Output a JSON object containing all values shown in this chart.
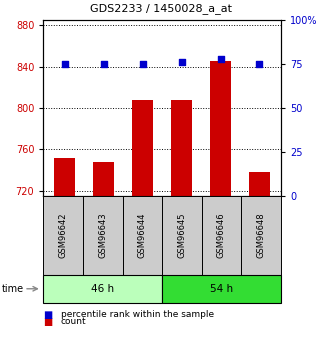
{
  "title": "GDS2233 / 1450028_a_at",
  "samples": [
    "GSM96642",
    "GSM96643",
    "GSM96644",
    "GSM96645",
    "GSM96646",
    "GSM96648"
  ],
  "count_values": [
    752,
    748,
    808,
    808,
    845,
    738
  ],
  "percentile_values": [
    75,
    75,
    75,
    76,
    78,
    75
  ],
  "ylim_left": [
    715,
    885
  ],
  "ylim_right": [
    0,
    100
  ],
  "yticks_left": [
    720,
    760,
    800,
    840,
    880
  ],
  "yticks_right": [
    0,
    25,
    50,
    75,
    100
  ],
  "ytick_labels_right": [
    "0",
    "25",
    "50",
    "75",
    "100%"
  ],
  "bar_color": "#cc0000",
  "dot_color": "#0000cc",
  "bar_width": 0.55,
  "groups": [
    {
      "label": "46 h",
      "indices": [
        0,
        1,
        2
      ],
      "color": "#bbffbb"
    },
    {
      "label": "54 h",
      "indices": [
        3,
        4,
        5
      ],
      "color": "#33dd33"
    }
  ],
  "group_border_color": "#000000",
  "sample_box_color": "#cccccc",
  "sample_box_border": "#000000",
  "left_tick_color": "#cc0000",
  "right_tick_color": "#0000cc",
  "legend_items": [
    {
      "label": "count",
      "color": "#cc0000"
    },
    {
      "label": "percentile rank within the sample",
      "color": "#0000cc"
    }
  ],
  "grid_color": "#000000",
  "background_color": "#ffffff"
}
